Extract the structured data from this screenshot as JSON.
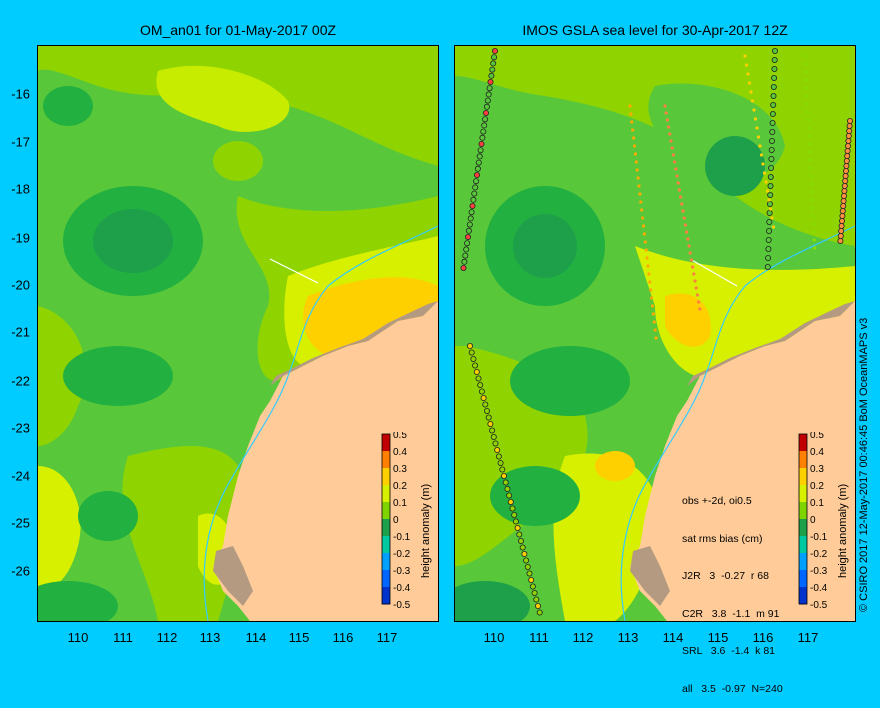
{
  "left_panel": {
    "title": "OM_an01 for 01-May-2017 00Z"
  },
  "right_panel": {
    "title": "IMOS GSLA sea level  for 30-Apr-2017 12Z",
    "stats": {
      "line1": "obs +-2d, oi0.5",
      "line2": "sat rms bias (cm)",
      "rows": [
        "J2R   3  -0.27  r 68",
        "C2R   3.8  -1.1  m 91",
        "SRL   3.6  -1.4  k 81",
        "all   3.5  -0.97  N=240"
      ]
    }
  },
  "x_ticks": [
    "110",
    "111",
    "112",
    "113",
    "114",
    "115",
    "116",
    "117"
  ],
  "y_ticks": [
    "-16",
    "-17",
    "-18",
    "-19",
    "-20",
    "-21",
    "-22",
    "-23",
    "-24",
    "-25",
    "-26"
  ],
  "colorbar": {
    "label": "height anomaly (m)",
    "ticks": [
      "0.5",
      "0.4",
      "0.3",
      "0.2",
      "0.1",
      "0",
      "-0.1",
      "-0.2",
      "-0.3",
      "-0.4",
      "-0.5"
    ],
    "colors": {
      "neg_05": "#001a80",
      "neg_04": "#0033cc",
      "neg_03": "#0066ff",
      "neg_02": "#00a0ff",
      "neg_01": "#00c8a0",
      "zero": "#1ea04b",
      "pos_01": "#7fd400",
      "pos_02": "#d6f000",
      "pos_03": "#ffd000",
      "pos_04": "#ff8000",
      "pos_05": "#c00000"
    }
  },
  "credit": "© CSIRO 2017   12-May-2017 00:46:45 BoM OceanMAPS v3"
}
